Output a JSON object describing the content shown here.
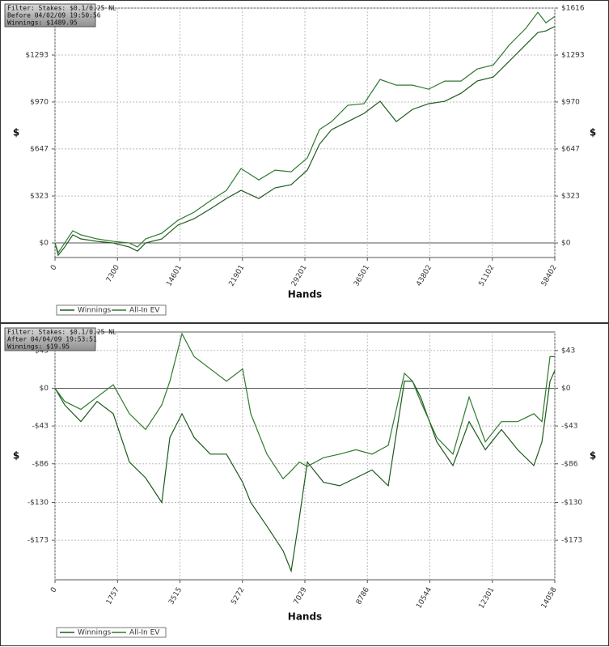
{
  "chart_data": [
    {
      "type": "line",
      "info": [
        "Filter: Stakes: $0.1/0.25 NL",
        "Before 04/02/09 19:50:56",
        "Winnings: $1489.95"
      ],
      "x_label": "Hands",
      "y_label": "$",
      "x": [
        0,
        378,
        1134,
        2079,
        3024,
        4914,
        6804,
        8694,
        9639,
        10584,
        12474,
        14364,
        16254,
        18144,
        20034,
        21735,
        23814,
        25704,
        27594,
        29484,
        30902,
        32319,
        34209,
        36099,
        37989,
        39879,
        41769,
        43659,
        45549,
        47439,
        49329,
        51219,
        53109,
        54999,
        56417,
        57362,
        58402
      ],
      "series": [
        {
          "name": "Winnings",
          "color": "#1d5a1d",
          "values": [
            0,
            -84,
            -28,
            56,
            28,
            11,
            0,
            -28,
            -56,
            0,
            28,
            123,
            167,
            234,
            306,
            362,
            306,
            379,
            401,
            501,
            679,
            780,
            835,
            891,
            975,
            835,
            919,
            958,
            975,
            1030,
            1114,
            1142,
            1253,
            1364,
            1448,
            1459,
            1490
          ]
        },
        {
          "name": "All-In EV",
          "color": "#2f7a2f",
          "values": [
            0,
            -67,
            0,
            84,
            56,
            28,
            11,
            0,
            -28,
            28,
            67,
            156,
            212,
            290,
            362,
            512,
            434,
            501,
            490,
            585,
            780,
            835,
            947,
            958,
            1125,
            1086,
            1086,
            1058,
            1114,
            1114,
            1197,
            1225,
            1364,
            1476,
            1587,
            1515,
            1559
          ]
        }
      ],
      "xlim": [
        0,
        58402
      ],
      "xticks": [
        0,
        7300,
        14601,
        21901,
        29201,
        36501,
        43802,
        51102,
        58402
      ],
      "ylim": [
        -100,
        1616
      ],
      "yticks": [
        {
          "value": 0,
          "label": "$0"
        },
        {
          "value": 323,
          "label": "$323"
        },
        {
          "value": 647,
          "label": "$647"
        },
        {
          "value": 970,
          "label": "$970"
        },
        {
          "value": 1293,
          "label": "$1293"
        },
        {
          "value": 1616,
          "label": "$1616"
        }
      ],
      "grid": true
    },
    {
      "type": "line",
      "info": [
        "Filter: Stakes: $0.1/0.25 NL",
        "After 04/04/09 19:53:51",
        "Winnings: $19.95"
      ],
      "x_label": "Hands",
      "y_label": "$",
      "x": [
        0,
        273,
        728,
        1183,
        1638,
        2093,
        2548,
        3003,
        3231,
        3572,
        3913,
        4368,
        4823,
        5278,
        5506,
        5961,
        6416,
        6643,
        6871,
        7098,
        7553,
        8008,
        8463,
        8918,
        9373,
        9828,
        10056,
        10283,
        10738,
        11193,
        11648,
        12103,
        12558,
        13013,
        13468,
        13696,
        13923,
        14058
      ],
      "series": [
        {
          "name": "Winnings",
          "color": "#1d5a1d",
          "values": [
            0,
            -19,
            -38,
            -15,
            -29,
            -84,
            -102,
            -130,
            -56,
            -29,
            -56,
            -75,
            -75,
            -107,
            -130,
            -157,
            -185,
            -208,
            -148,
            -84,
            -107,
            -111,
            -102,
            -93,
            -111,
            8,
            8,
            -10,
            -61,
            -88,
            -38,
            -70,
            -47,
            -70,
            -88,
            -61,
            8,
            20
          ]
        },
        {
          "name": "All-In EV",
          "color": "#2f7a2f",
          "values": [
            0,
            -15,
            -24,
            -10,
            4,
            -29,
            -47,
            -19,
            8,
            62,
            36,
            22,
            8,
            22,
            -29,
            -75,
            -103,
            -94,
            -84,
            -89,
            -79,
            -75,
            -70,
            -75,
            -65,
            17,
            8,
            -15,
            -56,
            -75,
            -10,
            -61,
            -38,
            -38,
            -29,
            -38,
            36,
            36
          ]
        }
      ],
      "xlim": [
        0,
        14058
      ],
      "xticks": [
        0,
        1757,
        3515,
        5272,
        7029,
        8786,
        10544,
        12301,
        14058
      ],
      "ylim": [
        -218,
        64
      ],
      "yticks": [
        {
          "value": -173,
          "label": "-$173"
        },
        {
          "value": -130,
          "label": "-$130"
        },
        {
          "value": -86,
          "label": "-$86"
        },
        {
          "value": -43,
          "label": "-$43"
        },
        {
          "value": 0,
          "label": "$0"
        },
        {
          "value": 43,
          "label": "$43"
        }
      ],
      "grid": true
    }
  ]
}
